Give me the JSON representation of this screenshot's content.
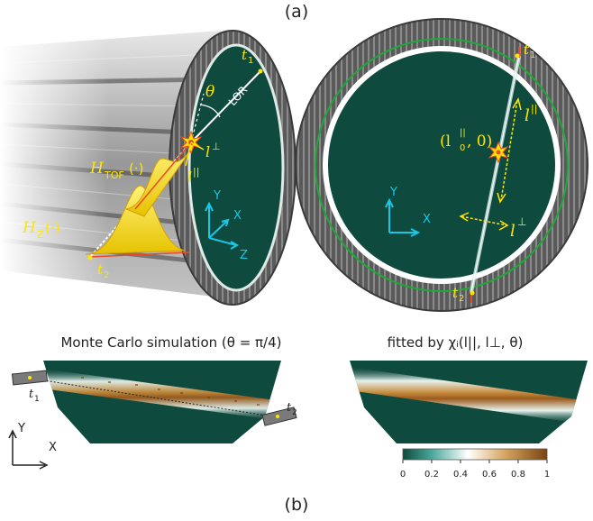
{
  "panels": {
    "a": "(a)",
    "b": "(b)"
  },
  "left_cylinder": {
    "theta": "θ",
    "lor": "LOR",
    "t1": "t",
    "t1_sub": "1",
    "t2": "t",
    "t2_sub": "2",
    "l_perp": "l",
    "l_perp_sup": "⊥",
    "l_par": "l",
    "l_par_sup": "||",
    "h_tof": "H",
    "h_tof_sub": "TOF",
    "h_tof_arg": "(·)",
    "h_z": "H",
    "h_z_sub": "Z",
    "h_z_arg": "(·)",
    "axis_y": "Y",
    "axis_x": "X",
    "axis_z": "Z"
  },
  "right_ring": {
    "t1": "t",
    "t1_sub": "1",
    "t2": "t",
    "t2_sub": "2",
    "point_label": "(l",
    "point_label_sup": "||",
    "point_label_sub": "0",
    "point_label_end": ", 0)",
    "l_par": "l",
    "l_par_sup": "||",
    "l_perp": "l",
    "l_perp_sup": "⊥",
    "axis_y": "Y",
    "axis_x": "X"
  },
  "sim_left": {
    "caption": "Monte Carlo simulation (θ = π/4)",
    "t1": "t",
    "t1_sub": "1",
    "t2": "t",
    "t2_sub": "2",
    "axis_y": "Y",
    "axis_x": "X"
  },
  "sim_right": {
    "caption": "fitted by χᵢ(l||, l⊥, θ)"
  },
  "colorbar": {
    "ticks": [
      "0",
      "0.2",
      "0.4",
      "0.6",
      "0.8",
      "1"
    ],
    "tick_values": [
      0,
      0.2,
      0.4,
      0.6,
      0.8,
      1
    ]
  },
  "colors": {
    "bg_dark": "#0f4a3e",
    "detector_gray": "#6d6d6d",
    "highlight_yellow": "#ffe600",
    "axis_cyan": "#19c8e6",
    "line_red": "#e84a2a"
  }
}
